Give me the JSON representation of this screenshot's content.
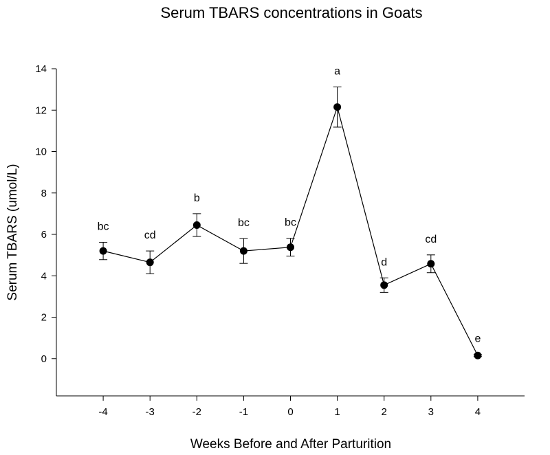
{
  "chart_data": {
    "type": "line",
    "title": "Serum TBARS concentrations in Goats",
    "xlabel": "Weeks Before and After Parturition",
    "ylabel": "Serum TBARS (umol/L)",
    "xlim": [
      -5,
      5
    ],
    "ylim": [
      -1.8,
      14
    ],
    "xticks": [
      -4,
      -3,
      -2,
      -1,
      0,
      1,
      2,
      3,
      4
    ],
    "yticks": [
      0,
      2,
      4,
      6,
      8,
      10,
      12,
      14
    ],
    "grid": false,
    "legend": "none",
    "colors": {
      "line": "#000000",
      "marker": "#000000"
    },
    "series": [
      {
        "x": [
          -4,
          -3,
          -2,
          -1,
          0,
          1,
          2,
          3,
          4
        ],
        "y": [
          5.2,
          4.65,
          6.45,
          5.2,
          5.38,
          12.15,
          3.55,
          4.58,
          0.15
        ],
        "error": [
          0.42,
          0.55,
          0.55,
          0.6,
          0.43,
          0.97,
          0.35,
          0.43,
          0.05
        ],
        "significance": [
          "bc",
          "cd",
          "b",
          "bc",
          "bc",
          "a",
          "d",
          "cd",
          "e"
        ]
      }
    ]
  }
}
